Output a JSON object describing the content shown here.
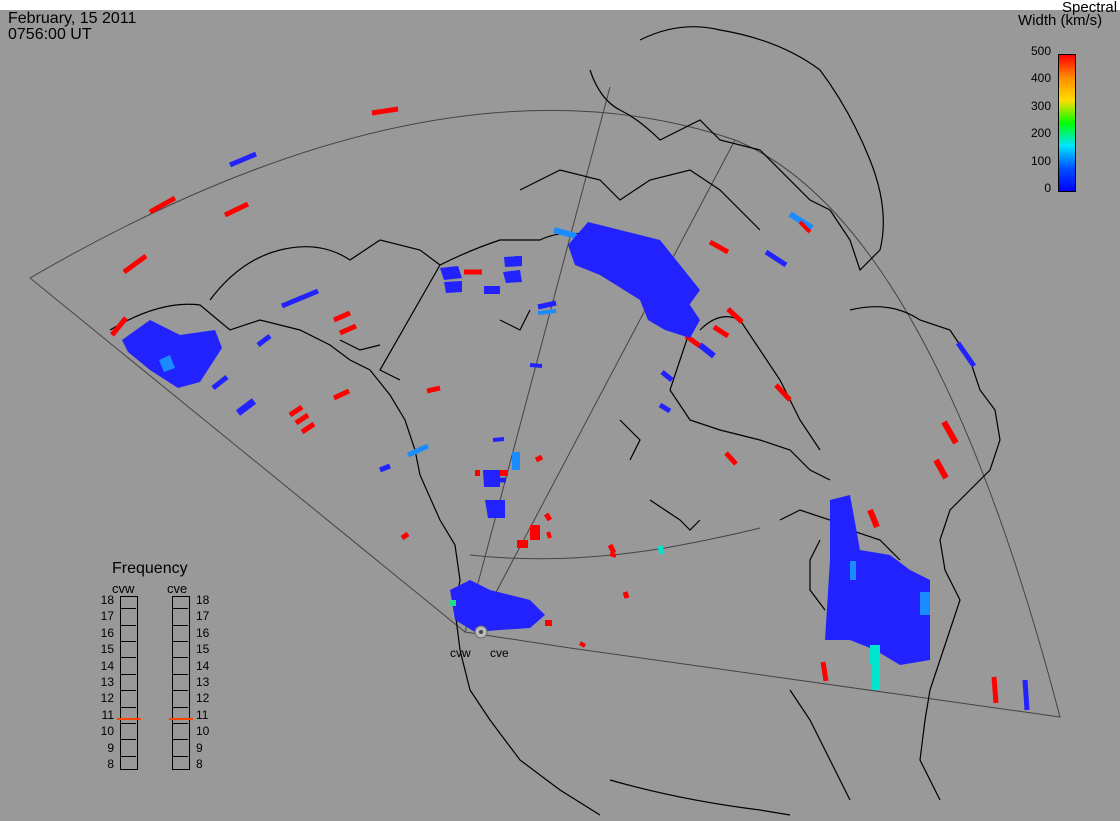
{
  "header": {
    "date": "February, 15 2011",
    "time": "0756:00 UT"
  },
  "colorbar": {
    "title_line1": "Spectral",
    "title_line2": "Width (km/s)",
    "ticks": [
      "500",
      "400",
      "300",
      "200",
      "100",
      "0"
    ],
    "colors": [
      "#ff0000",
      "#ff8c00",
      "#ffdd00",
      "#00ff00",
      "#00e5ff",
      "#0050ff",
      "#0000ff"
    ]
  },
  "radars": {
    "west": "cvw",
    "east": "cve"
  },
  "frequency_panel": {
    "title": "Frequency",
    "left_label": "cvw",
    "right_label": "cve",
    "values": [
      "18",
      "17",
      "16",
      "15",
      "14",
      "13",
      "12",
      "11",
      "10",
      "9",
      "8"
    ],
    "cvw_marker_mhz": 10.8,
    "cve_marker_mhz": 10.8,
    "marker_color": "#ff4400"
  },
  "map": {
    "background": "#999999",
    "coast_color": "#000000",
    "fov_color": "#333333"
  }
}
